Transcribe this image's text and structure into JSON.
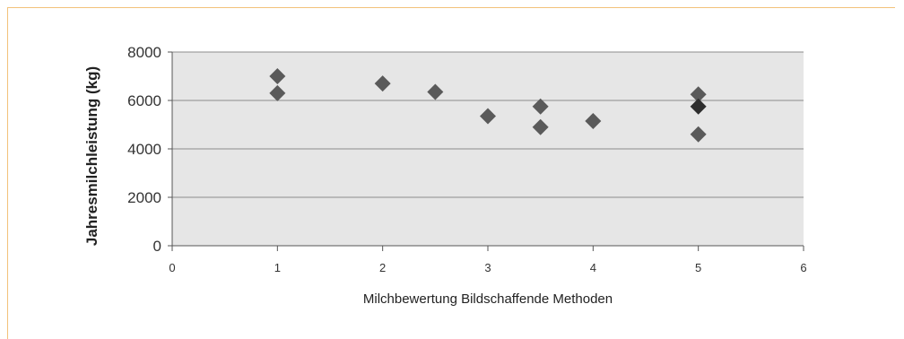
{
  "chart_data": {
    "type": "scatter",
    "title": "",
    "xlabel": "Milchbewertung Bildschaffende Methoden",
    "ylabel": "Jahresmilchleistung (kg)",
    "xlim": [
      0,
      6
    ],
    "ylim": [
      0,
      8000
    ],
    "xticks": [
      "0",
      "1",
      "2",
      "3",
      "4",
      "5",
      "6"
    ],
    "yticks": [
      "0",
      "2000",
      "4000",
      "6000",
      "8000"
    ],
    "grid": "horizontal",
    "legend": "none",
    "colors": {
      "point": "#5a5a5a",
      "point_dark": "#2e2e2e",
      "plot_bg": "#e6e6e6",
      "grid": "#8c8c8c",
      "frame": "#f2c27a"
    },
    "series": [
      {
        "points": [
          {
            "x": 1,
            "y": 7000
          },
          {
            "x": 1,
            "y": 6300
          },
          {
            "x": 2,
            "y": 6700
          },
          {
            "x": 2.5,
            "y": 6350
          },
          {
            "x": 3,
            "y": 5350
          },
          {
            "x": 3.5,
            "y": 5750
          },
          {
            "x": 3.5,
            "y": 4900
          },
          {
            "x": 4,
            "y": 5150
          },
          {
            "x": 5,
            "y": 6250
          },
          {
            "x": 5,
            "y": 5750
          },
          {
            "x": 5,
            "y": 4600
          }
        ]
      }
    ]
  }
}
